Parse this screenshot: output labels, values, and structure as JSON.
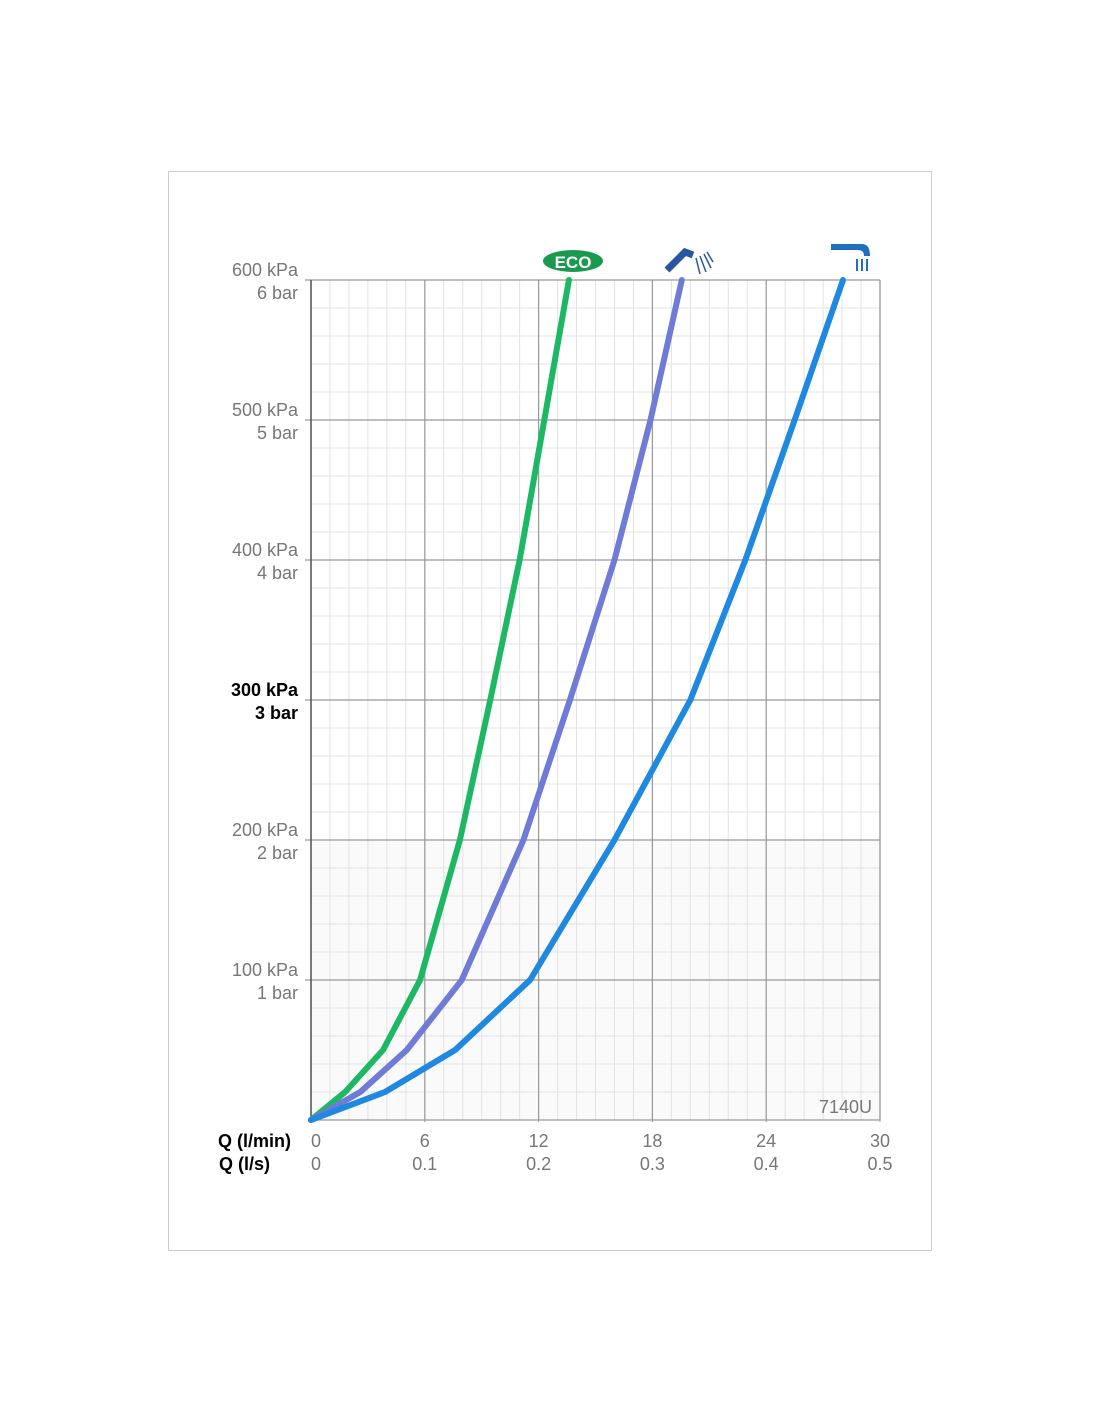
{
  "chart_data": {
    "type": "line",
    "xlabel": "Q (l/min)",
    "x2label": "Q (l/s)",
    "xlim": [
      0,
      30
    ],
    "xticks": [
      0,
      6,
      12,
      18,
      24,
      30
    ],
    "x2lim": [
      0,
      0.5
    ],
    "x2ticks": [
      0,
      0.1,
      0.2,
      0.3,
      0.4,
      0.5
    ],
    "ylim": [
      0,
      600
    ],
    "yticks": [
      {
        "value": 100,
        "label": "100 kPa"
      },
      {
        "value": 200,
        "label": "200 kPa"
      },
      {
        "value": 300,
        "label": "300 kPa"
      },
      {
        "value": 400,
        "label": "400 kPa"
      },
      {
        "value": 500,
        "label": "500 kPa"
      },
      {
        "value": 600,
        "label": "600 kPa"
      }
    ],
    "y2lim": [
      0,
      6
    ],
    "y2ticks": [
      {
        "value": 1,
        "label": "1 bar"
      },
      {
        "value": 2,
        "label": "2 bar"
      },
      {
        "value": 3,
        "label": "3 bar"
      },
      {
        "value": 4,
        "label": "4 bar"
      },
      {
        "value": 5,
        "label": "5 bar"
      },
      {
        "value": 6,
        "label": "6 bar"
      }
    ],
    "bold_ytick": 300,
    "grid": true,
    "minor_grid_step": {
      "x": 1,
      "y": 20
    },
    "annotation": "7140U",
    "series": [
      {
        "name": "ECO",
        "color": "#1db863",
        "x": [
          0,
          1.8,
          3.8,
          5.75,
          7.85,
          9.45,
          11.0,
          12.3,
          13.6
        ],
        "values": [
          0,
          20,
          50,
          100,
          200,
          300,
          400,
          500,
          600
        ]
      },
      {
        "color": "#6f7bd6",
        "x": [
          0,
          2.6,
          5.05,
          7.95,
          11.2,
          13.65,
          16.0,
          17.9,
          19.55
        ],
        "values": [
          0,
          20,
          50,
          100,
          200,
          300,
          400,
          500,
          600
        ]
      },
      {
        "color": "#1f88e0",
        "x": [
          0,
          3.9,
          7.6,
          11.55,
          16.0,
          20.0,
          22.9,
          25.5,
          28.05
        ],
        "values": [
          0,
          20,
          50,
          100,
          200,
          300,
          400,
          500,
          600
        ]
      }
    ]
  }
}
